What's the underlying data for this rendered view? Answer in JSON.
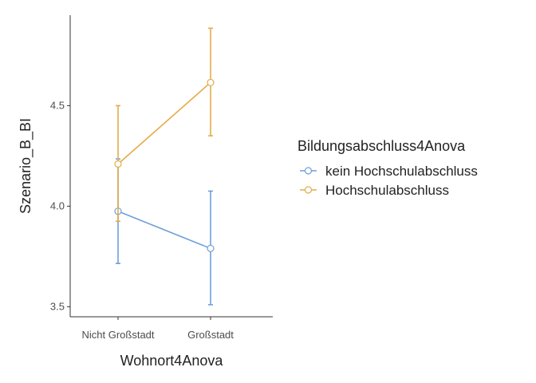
{
  "chart_data": {
    "type": "line",
    "title": "",
    "xlabel": "Wohnort4Anova",
    "ylabel": "Szenario_B_BI",
    "categories": [
      "Nicht Großstadt",
      "Großstadt"
    ],
    "ylim": [
      3.45,
      4.95
    ],
    "yticks": [
      3.5,
      4.0,
      4.5
    ],
    "ytick_labels": [
      "3.5",
      "4.0",
      "4.5"
    ],
    "grid": false,
    "legend": {
      "title": "Bildungsabschluss4Anova",
      "placement": "right"
    },
    "series": [
      {
        "name": "kein Hochschulabschluss",
        "color": "#6f9fd8",
        "values": [
          3.975,
          3.79
        ],
        "err_low": [
          3.715,
          3.51
        ],
        "err_high": [
          4.235,
          4.075
        ]
      },
      {
        "name": "Hochschulabschluss",
        "color": "#e1ad4a",
        "values": [
          4.21,
          4.615
        ],
        "err_low": [
          3.925,
          4.35
        ],
        "err_high": [
          4.5,
          4.885
        ]
      }
    ]
  }
}
